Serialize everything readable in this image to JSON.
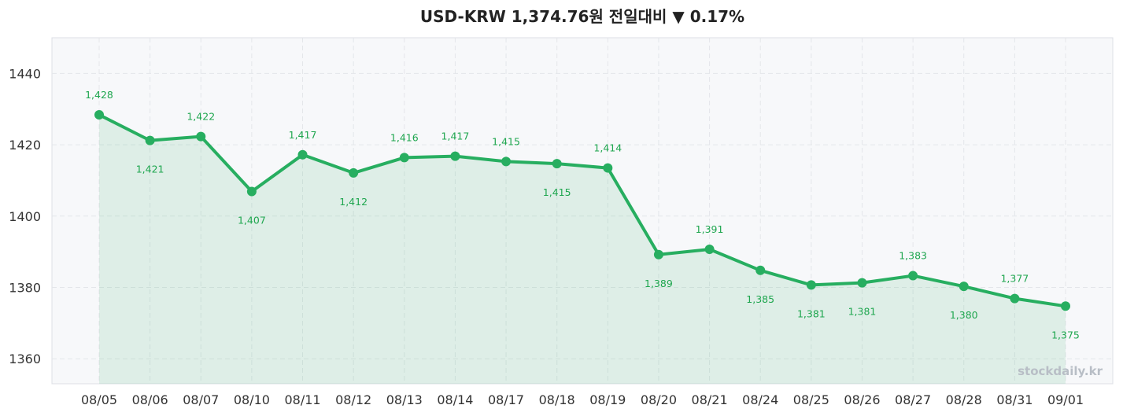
{
  "chart_data": {
    "type": "line",
    "title": "USD-KRW  1,374.76원  전일대비 ▼ 0.17%",
    "categories": [
      "08/05",
      "08/06",
      "08/07",
      "08/10",
      "08/11",
      "08/12",
      "08/13",
      "08/14",
      "08/17",
      "08/18",
      "08/19",
      "08/20",
      "08/21",
      "08/24",
      "08/25",
      "08/26",
      "08/27",
      "08/28",
      "08/31",
      "09/01"
    ],
    "values": [
      1428.4,
      1421.2,
      1422.3,
      1406.9,
      1417.2,
      1412.1,
      1416.4,
      1416.8,
      1415.3,
      1414.7,
      1413.5,
      1389.2,
      1390.7,
      1384.8,
      1380.7,
      1381.3,
      1383.3,
      1380.3,
      1376.9,
      1374.76
    ],
    "data_labels": [
      "1,428",
      "1,421",
      "1,422",
      "1,407",
      "1,417",
      "1,412",
      "1,416",
      "1,417",
      "1,415",
      "1,415",
      "1,414",
      "1,389",
      "1,391",
      "1,385",
      "1,381",
      "1,381",
      "1,383",
      "1,380",
      "1,377",
      "1,375"
    ],
    "ylim": [
      1353,
      1450
    ],
    "yticks": [
      "1360",
      "1380",
      "1400",
      "1420",
      "1440"
    ],
    "xlabel": "",
    "ylabel": "",
    "grid": true,
    "area_fill": true,
    "colors": {
      "line": "#27ae60",
      "fill": "#27ae60",
      "background": "#f7f8fa",
      "grid": "#e4e6ea",
      "label": "#1fa64f"
    },
    "watermark": "stockdaily.kr"
  }
}
